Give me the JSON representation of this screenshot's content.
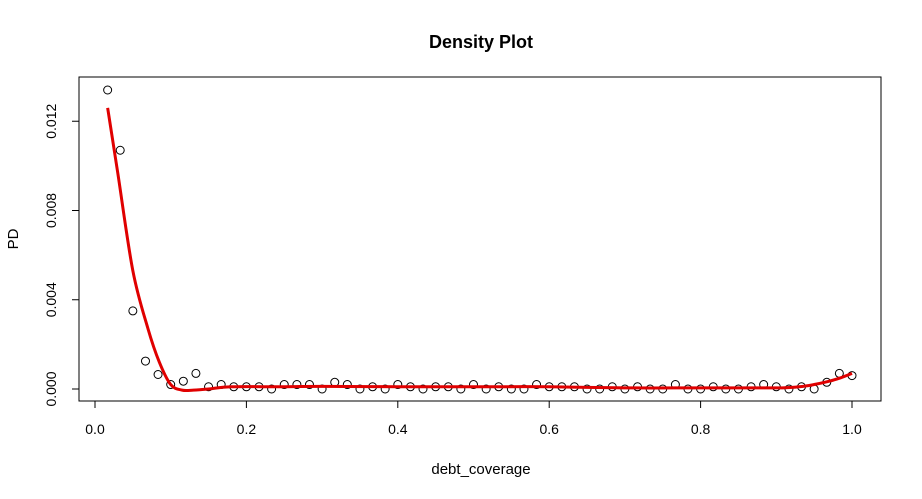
{
  "chart_data": {
    "type": "scatter",
    "title": "Density Plot",
    "xlabel": "debt_coverage",
    "ylabel": "PD",
    "xlim": [
      0,
      1.0
    ],
    "ylim": [
      0,
      0.0134
    ],
    "x_ticks": [
      0.0,
      0.2,
      0.4,
      0.6,
      0.8,
      1.0
    ],
    "x_tick_labels": [
      "0.0",
      "0.2",
      "0.4",
      "0.6",
      "0.8",
      "1.0"
    ],
    "y_ticks": [
      0.0,
      0.004,
      0.008,
      0.012
    ],
    "y_tick_labels": [
      "0.000",
      "0.004",
      "0.008",
      "0.012"
    ],
    "grid": false,
    "series": [
      {
        "kind": "points",
        "marker": "open-circle",
        "color": "#000000",
        "x": [
          0.0167,
          0.0333,
          0.05,
          0.0667,
          0.0833,
          0.1,
          0.1167,
          0.1333,
          0.15,
          0.1667,
          0.1833,
          0.2,
          0.2167,
          0.2333,
          0.25,
          0.2667,
          0.2833,
          0.3,
          0.3167,
          0.3333,
          0.35,
          0.3667,
          0.3833,
          0.4,
          0.4167,
          0.4333,
          0.45,
          0.4667,
          0.4833,
          0.5,
          0.5167,
          0.5333,
          0.55,
          0.5667,
          0.5833,
          0.6,
          0.6167,
          0.6333,
          0.65,
          0.6667,
          0.6833,
          0.7,
          0.7167,
          0.7333,
          0.75,
          0.7667,
          0.7833,
          0.8,
          0.8167,
          0.8333,
          0.85,
          0.8667,
          0.8833,
          0.9,
          0.9167,
          0.9333,
          0.95,
          0.9667,
          0.9833,
          1.0
        ],
        "y": [
          0.0134,
          0.0107,
          0.0035,
          0.00125,
          0.00065,
          0.0002,
          0.00035,
          0.0007,
          0.0001,
          0.0002,
          0.0001,
          0.0001,
          0.0001,
          0.0,
          0.0002,
          0.0002,
          0.0002,
          0.0,
          0.0003,
          0.0002,
          0.0,
          0.0001,
          0.0,
          0.0002,
          0.0001,
          0.0,
          0.0001,
          0.0001,
          0.0,
          0.0002,
          0.0,
          0.0001,
          0.0,
          0.0,
          0.0002,
          0.0001,
          0.0001,
          0.0001,
          0.0,
          0.0,
          0.0001,
          0.0,
          0.0001,
          0.0,
          0.0,
          0.0002,
          0.0,
          0.0,
          0.0001,
          0.0,
          0.0,
          0.0001,
          0.0002,
          0.0001,
          0.0,
          0.0001,
          0.0,
          0.0003,
          0.0007,
          0.0006
        ]
      },
      {
        "kind": "line",
        "color": "#e00000",
        "x": [
          0.0167,
          0.03,
          0.05,
          0.07,
          0.085,
          0.1,
          0.115,
          0.13,
          0.15,
          0.18,
          0.25,
          0.3,
          0.4,
          0.5,
          0.6,
          0.7,
          0.8,
          0.9,
          0.93,
          0.95,
          0.97,
          0.985,
          1.0
        ],
        "y": [
          0.0126,
          0.0097,
          0.0053,
          0.0027,
          0.0012,
          0.0002,
          -5e-05,
          -5e-05,
          0.0,
          0.0001,
          0.0001,
          0.00012,
          0.0001,
          0.0001,
          0.0001,
          5e-05,
          5e-05,
          5e-05,
          0.0001,
          0.0002,
          0.00035,
          0.0005,
          0.0007
        ]
      }
    ]
  }
}
